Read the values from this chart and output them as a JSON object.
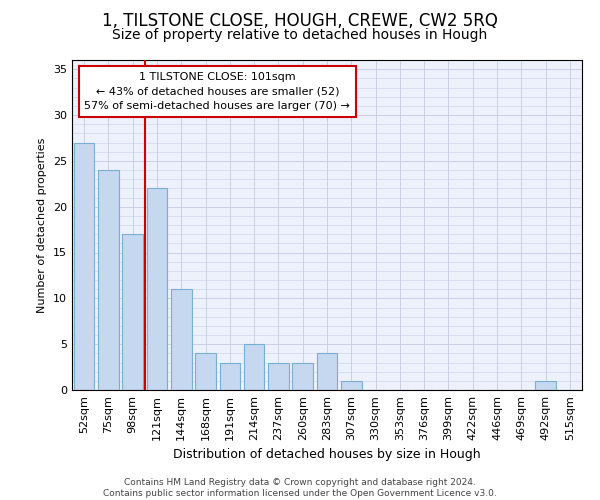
{
  "title": "1, TILSTONE CLOSE, HOUGH, CREWE, CW2 5RQ",
  "subtitle": "Size of property relative to detached houses in Hough",
  "xlabel": "Distribution of detached houses by size in Hough",
  "ylabel": "Number of detached properties",
  "categories": [
    "52sqm",
    "75sqm",
    "98sqm",
    "121sqm",
    "144sqm",
    "168sqm",
    "191sqm",
    "214sqm",
    "237sqm",
    "260sqm",
    "283sqm",
    "307sqm",
    "330sqm",
    "353sqm",
    "376sqm",
    "399sqm",
    "422sqm",
    "446sqm",
    "469sqm",
    "492sqm",
    "515sqm"
  ],
  "values": [
    27,
    24,
    17,
    22,
    11,
    4,
    3,
    5,
    3,
    3,
    4,
    1,
    0,
    0,
    0,
    0,
    0,
    0,
    0,
    1,
    0
  ],
  "bar_color": "#c5d8ef",
  "bar_edge_color": "#7aafd4",
  "vline_color": "#cc0000",
  "vline_index": 2.5,
  "annotation_text": "1 TILSTONE CLOSE: 101sqm\n← 43% of detached houses are smaller (52)\n57% of semi-detached houses are larger (70) →",
  "annotation_box_facecolor": "#ffffff",
  "annotation_box_edgecolor": "#cc0000",
  "ylim": [
    0,
    36
  ],
  "yticks": [
    0,
    5,
    10,
    15,
    20,
    25,
    30,
    35
  ],
  "background_color": "#edf1fb",
  "grid_color": "#c8cfe8",
  "footer_text": "Contains HM Land Registry data © Crown copyright and database right 2024.\nContains public sector information licensed under the Open Government Licence v3.0.",
  "title_fontsize": 12,
  "subtitle_fontsize": 10,
  "xlabel_fontsize": 9,
  "ylabel_fontsize": 8,
  "tick_fontsize": 8,
  "annotation_fontsize": 8,
  "footer_fontsize": 6.5
}
